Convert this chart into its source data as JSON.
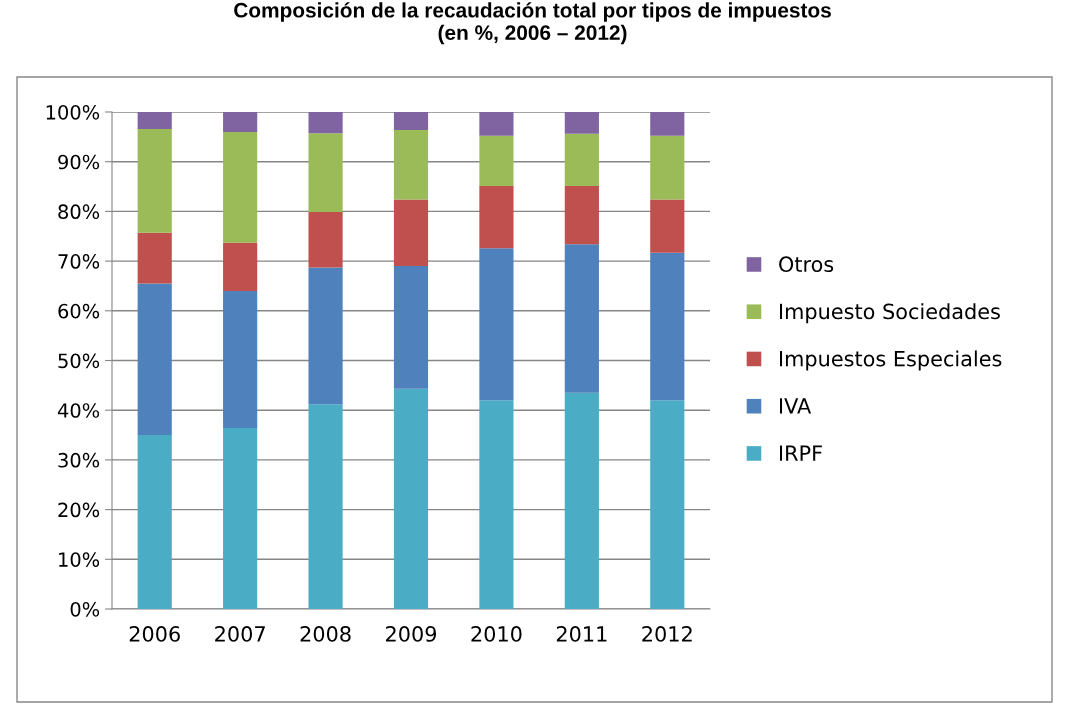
{
  "chart_data": {
    "type": "bar",
    "title": "Composición de la recaudación total por tipos de impuestos\n(en %, 2006 – 2012)",
    "categories": [
      "2006",
      "2007",
      "2008",
      "2009",
      "2010",
      "2011",
      "2012"
    ],
    "stacked": true,
    "series": [
      {
        "name": "IRPF",
        "color": "#4bacc6",
        "values": [
          35.0,
          36.4,
          41.2,
          44.3,
          42.0,
          43.5,
          42.0
        ]
      },
      {
        "name": "IVA",
        "color": "#4f81bd",
        "values": [
          30.5,
          27.6,
          27.5,
          24.7,
          30.6,
          29.9,
          29.7
        ]
      },
      {
        "name": "Impuestos Especiales",
        "color": "#c0504d",
        "values": [
          10.2,
          9.7,
          11.2,
          13.4,
          12.5,
          11.7,
          10.7
        ]
      },
      {
        "name": "Impuesto Sociedades",
        "color": "#9bbb59",
        "values": [
          20.9,
          22.3,
          15.8,
          14.0,
          10.1,
          10.5,
          12.8
        ]
      },
      {
        "name": "Otros",
        "color": "#8064a2",
        "values": [
          3.4,
          4.0,
          4.3,
          3.6,
          4.8,
          4.4,
          4.8
        ]
      }
    ],
    "ylim": [
      0,
      100
    ],
    "yticks": [
      {
        "value": 0,
        "label": "0%"
      },
      {
        "value": 10,
        "label": "10%"
      },
      {
        "value": 20,
        "label": "20%"
      },
      {
        "value": 30,
        "label": "30%"
      },
      {
        "value": 40,
        "label": "40%"
      },
      {
        "value": 50,
        "label": "50%"
      },
      {
        "value": 60,
        "label": "60%"
      },
      {
        "value": 70,
        "label": "70%"
      },
      {
        "value": 80,
        "label": "80%"
      },
      {
        "value": 90,
        "label": "90%"
      },
      {
        "value": 100,
        "label": "100%"
      }
    ],
    "grid": "y",
    "legend": "right"
  }
}
